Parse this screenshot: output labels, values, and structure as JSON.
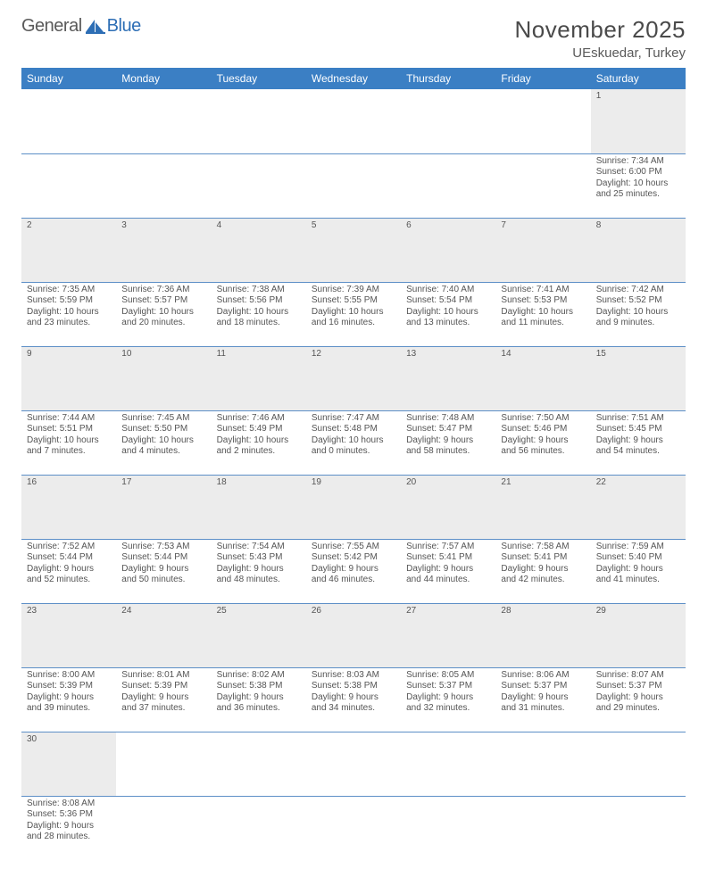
{
  "logo": {
    "text1": "General",
    "text2": "Blue"
  },
  "title": "November 2025",
  "location": "UEskuedar, Turkey",
  "colors": {
    "header_bg": "#3b7fc4",
    "header_text": "#ffffff",
    "daynum_bg": "#ececec",
    "row_border": "#5d8fc7",
    "body_text": "#555555",
    "title_text": "#4a4a4a"
  },
  "days": [
    "Sunday",
    "Monday",
    "Tuesday",
    "Wednesday",
    "Thursday",
    "Friday",
    "Saturday"
  ],
  "weeks": [
    {
      "nums": [
        "",
        "",
        "",
        "",
        "",
        "",
        "1"
      ],
      "cells": [
        null,
        null,
        null,
        null,
        null,
        null,
        {
          "sunrise": "7:34 AM",
          "sunset": "6:00 PM",
          "daylight": "10 hours and 25 minutes."
        }
      ]
    },
    {
      "nums": [
        "2",
        "3",
        "4",
        "5",
        "6",
        "7",
        "8"
      ],
      "cells": [
        {
          "sunrise": "7:35 AM",
          "sunset": "5:59 PM",
          "daylight": "10 hours and 23 minutes."
        },
        {
          "sunrise": "7:36 AM",
          "sunset": "5:57 PM",
          "daylight": "10 hours and 20 minutes."
        },
        {
          "sunrise": "7:38 AM",
          "sunset": "5:56 PM",
          "daylight": "10 hours and 18 minutes."
        },
        {
          "sunrise": "7:39 AM",
          "sunset": "5:55 PM",
          "daylight": "10 hours and 16 minutes."
        },
        {
          "sunrise": "7:40 AM",
          "sunset": "5:54 PM",
          "daylight": "10 hours and 13 minutes."
        },
        {
          "sunrise": "7:41 AM",
          "sunset": "5:53 PM",
          "daylight": "10 hours and 11 minutes."
        },
        {
          "sunrise": "7:42 AM",
          "sunset": "5:52 PM",
          "daylight": "10 hours and 9 minutes."
        }
      ]
    },
    {
      "nums": [
        "9",
        "10",
        "11",
        "12",
        "13",
        "14",
        "15"
      ],
      "cells": [
        {
          "sunrise": "7:44 AM",
          "sunset": "5:51 PM",
          "daylight": "10 hours and 7 minutes."
        },
        {
          "sunrise": "7:45 AM",
          "sunset": "5:50 PM",
          "daylight": "10 hours and 4 minutes."
        },
        {
          "sunrise": "7:46 AM",
          "sunset": "5:49 PM",
          "daylight": "10 hours and 2 minutes."
        },
        {
          "sunrise": "7:47 AM",
          "sunset": "5:48 PM",
          "daylight": "10 hours and 0 minutes."
        },
        {
          "sunrise": "7:48 AM",
          "sunset": "5:47 PM",
          "daylight": "9 hours and 58 minutes."
        },
        {
          "sunrise": "7:50 AM",
          "sunset": "5:46 PM",
          "daylight": "9 hours and 56 minutes."
        },
        {
          "sunrise": "7:51 AM",
          "sunset": "5:45 PM",
          "daylight": "9 hours and 54 minutes."
        }
      ]
    },
    {
      "nums": [
        "16",
        "17",
        "18",
        "19",
        "20",
        "21",
        "22"
      ],
      "cells": [
        {
          "sunrise": "7:52 AM",
          "sunset": "5:44 PM",
          "daylight": "9 hours and 52 minutes."
        },
        {
          "sunrise": "7:53 AM",
          "sunset": "5:44 PM",
          "daylight": "9 hours and 50 minutes."
        },
        {
          "sunrise": "7:54 AM",
          "sunset": "5:43 PM",
          "daylight": "9 hours and 48 minutes."
        },
        {
          "sunrise": "7:55 AM",
          "sunset": "5:42 PM",
          "daylight": "9 hours and 46 minutes."
        },
        {
          "sunrise": "7:57 AM",
          "sunset": "5:41 PM",
          "daylight": "9 hours and 44 minutes."
        },
        {
          "sunrise": "7:58 AM",
          "sunset": "5:41 PM",
          "daylight": "9 hours and 42 minutes."
        },
        {
          "sunrise": "7:59 AM",
          "sunset": "5:40 PM",
          "daylight": "9 hours and 41 minutes."
        }
      ]
    },
    {
      "nums": [
        "23",
        "24",
        "25",
        "26",
        "27",
        "28",
        "29"
      ],
      "cells": [
        {
          "sunrise": "8:00 AM",
          "sunset": "5:39 PM",
          "daylight": "9 hours and 39 minutes."
        },
        {
          "sunrise": "8:01 AM",
          "sunset": "5:39 PM",
          "daylight": "9 hours and 37 minutes."
        },
        {
          "sunrise": "8:02 AM",
          "sunset": "5:38 PM",
          "daylight": "9 hours and 36 minutes."
        },
        {
          "sunrise": "8:03 AM",
          "sunset": "5:38 PM",
          "daylight": "9 hours and 34 minutes."
        },
        {
          "sunrise": "8:05 AM",
          "sunset": "5:37 PM",
          "daylight": "9 hours and 32 minutes."
        },
        {
          "sunrise": "8:06 AM",
          "sunset": "5:37 PM",
          "daylight": "9 hours and 31 minutes."
        },
        {
          "sunrise": "8:07 AM",
          "sunset": "5:37 PM",
          "daylight": "9 hours and 29 minutes."
        }
      ]
    },
    {
      "nums": [
        "30",
        "",
        "",
        "",
        "",
        "",
        ""
      ],
      "cells": [
        {
          "sunrise": "8:08 AM",
          "sunset": "5:36 PM",
          "daylight": "9 hours and 28 minutes."
        },
        null,
        null,
        null,
        null,
        null,
        null
      ]
    }
  ],
  "labels": {
    "sunrise": "Sunrise:",
    "sunset": "Sunset:",
    "daylight": "Daylight:"
  }
}
